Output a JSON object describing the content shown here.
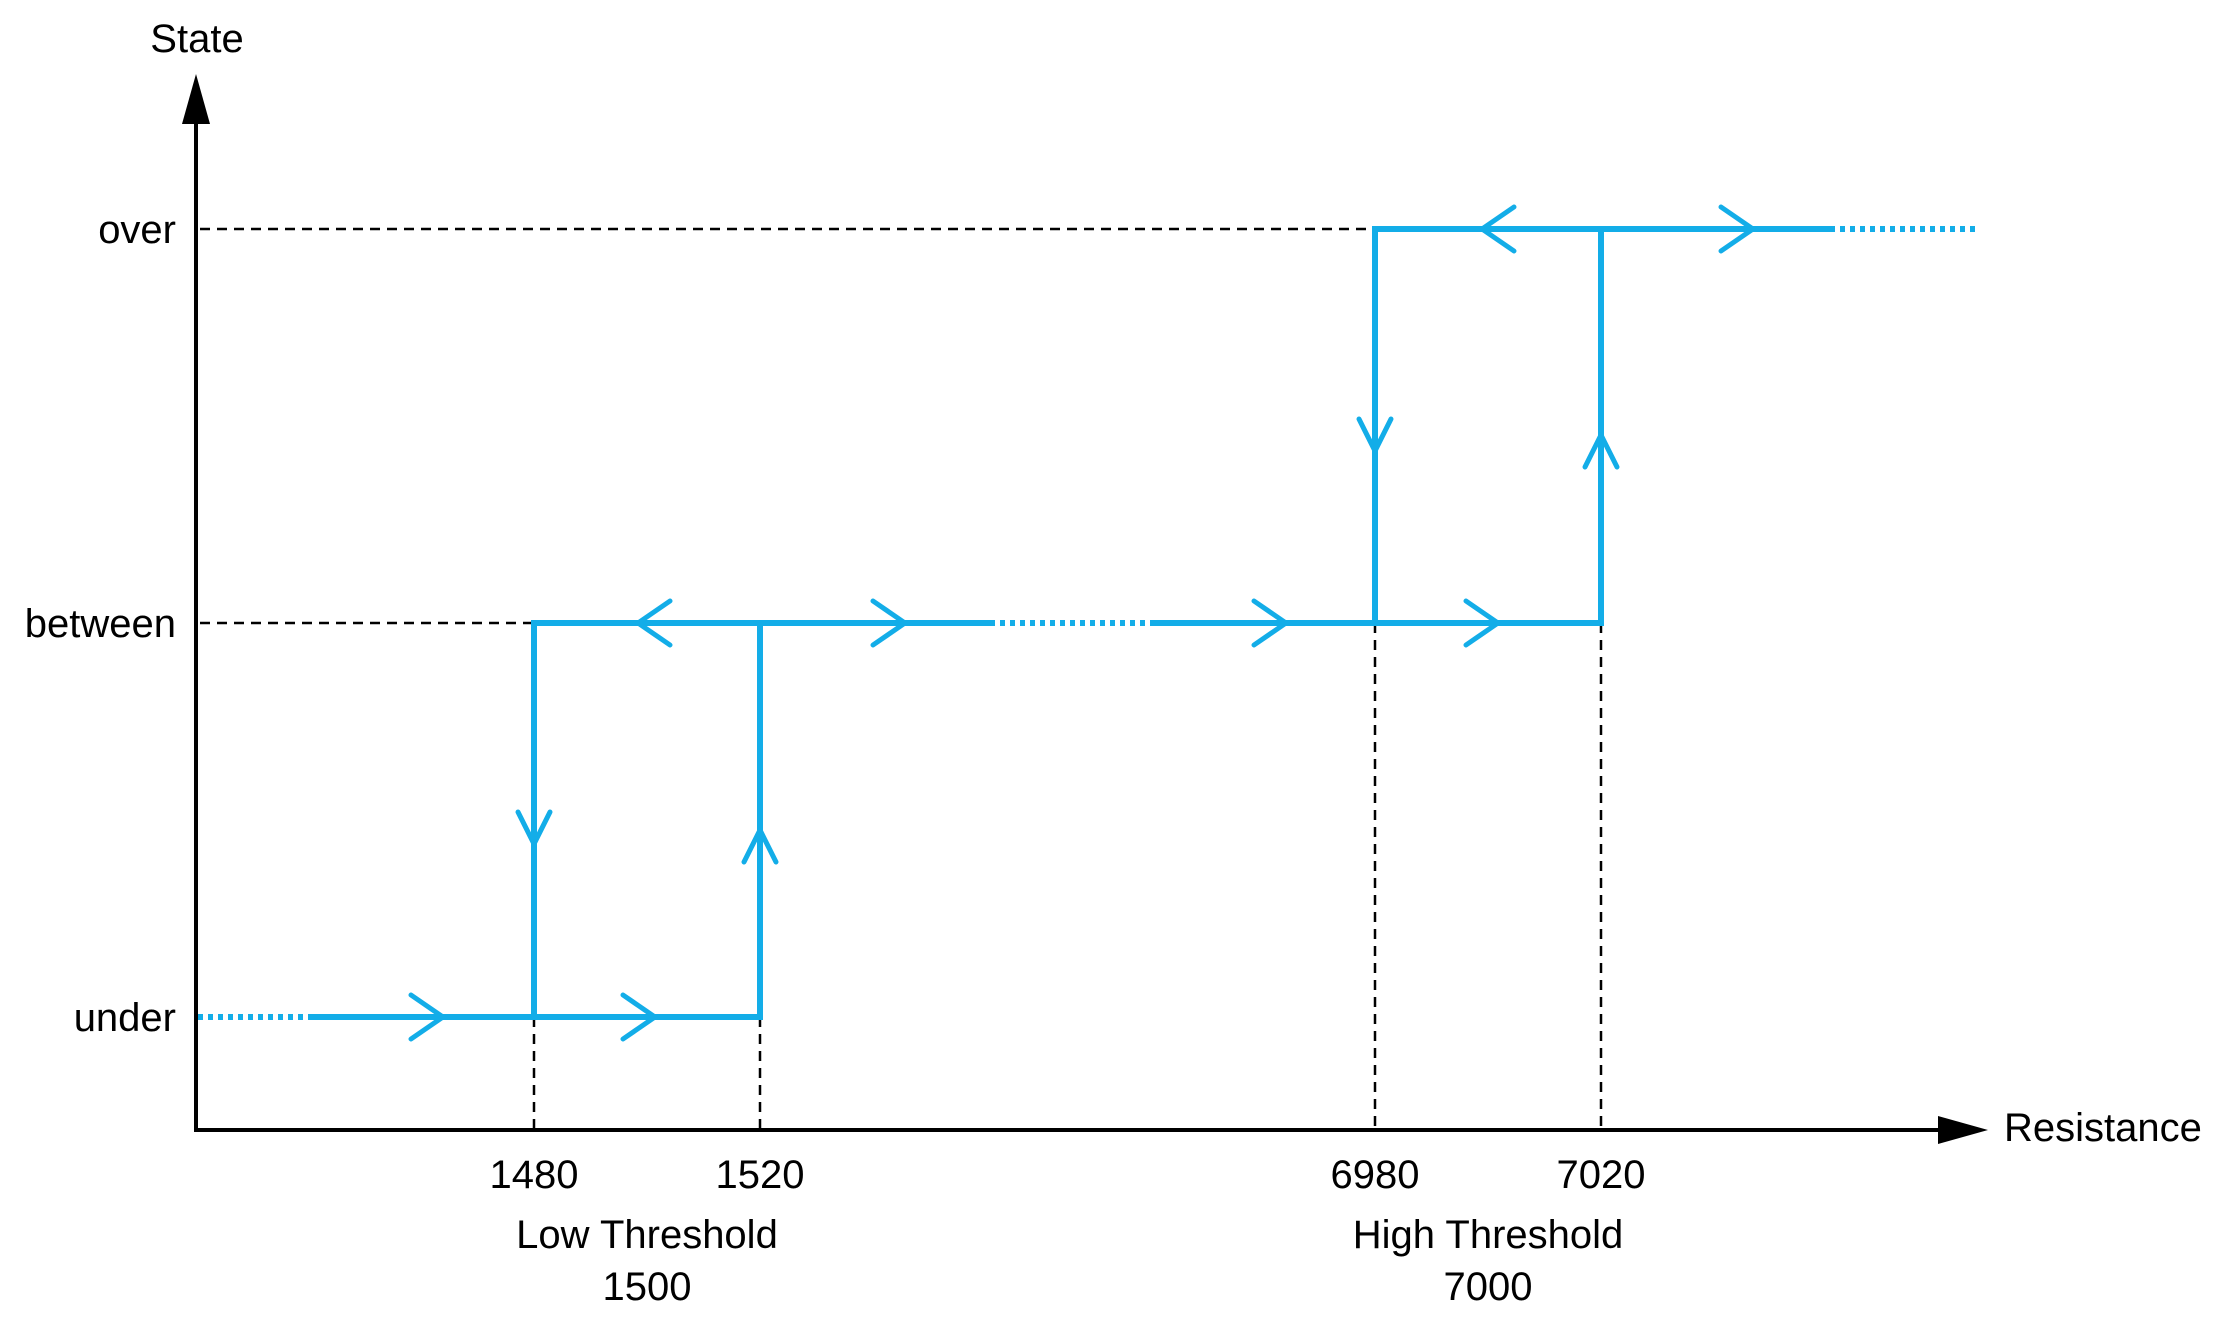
{
  "axes": {
    "y_label": "State",
    "x_label": "Resistance"
  },
  "states": {
    "over": "over",
    "between": "between",
    "under": "under"
  },
  "ticks": {
    "t1480": "1480",
    "t1520": "1520",
    "t6980": "6980",
    "t7020": "7020"
  },
  "thresholds": {
    "low_name": "Low Threshold",
    "low_value": "1500",
    "high_name": "High Threshold",
    "high_value": "7000"
  },
  "colors": {
    "trace": "#13ade8",
    "axis": "#000000"
  }
}
